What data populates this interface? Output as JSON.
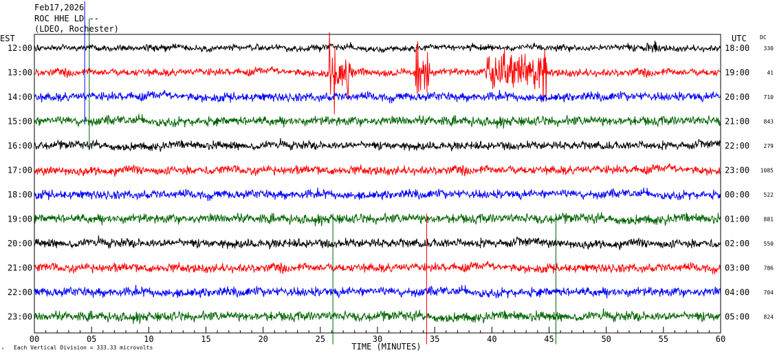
{
  "header": {
    "date": "Feb17,2026",
    "station": "ROC HHE LD --",
    "network": "(LDEO, Rochester)"
  },
  "footer": {
    "mark": "ᵃ",
    "scale_text": "Each Vertical Division =  333.33 microvolts"
  },
  "chart_data": {
    "type": "line",
    "subtype": "helicorder",
    "xlabel": "TIME (MINUTES)",
    "xlim": [
      0,
      60
    ],
    "x_ticks": [
      "00",
      "05",
      "10",
      "15",
      "20",
      "25",
      "30",
      "35",
      "40",
      "45",
      "50",
      "55",
      "60"
    ],
    "left_axis_title": "EST",
    "right_axis_title": "UTC",
    "dc_title": "DC",
    "series_colors": [
      "#000000",
      "#ff0000",
      "#0000ff",
      "#006400"
    ],
    "rows": [
      {
        "est": "12:00",
        "utc": "18:00",
        "dc": "330",
        "color": "#000000",
        "amp": 1.0
      },
      {
        "est": "13:00",
        "utc": "19:00",
        "dc": "41",
        "color": "#ff0000",
        "amp": 1.2
      },
      {
        "est": "14:00",
        "utc": "20:00",
        "dc": "710",
        "color": "#0000ff",
        "amp": 1.4
      },
      {
        "est": "15:00",
        "utc": "21:00",
        "dc": "843",
        "color": "#006400",
        "amp": 1.5
      },
      {
        "est": "16:00",
        "utc": "22:00",
        "dc": "279",
        "color": "#000000",
        "amp": 1.3
      },
      {
        "est": "17:00",
        "utc": "23:00",
        "dc": "1085",
        "color": "#ff0000",
        "amp": 1.4
      },
      {
        "est": "18:00",
        "utc": "00:00",
        "dc": "522",
        "color": "#0000ff",
        "amp": 1.4
      },
      {
        "est": "19:00",
        "utc": "01:00",
        "dc": "881",
        "color": "#006400",
        "amp": 1.5
      },
      {
        "est": "20:00",
        "utc": "02:00",
        "dc": "550",
        "color": "#000000",
        "amp": 1.4
      },
      {
        "est": "21:00",
        "utc": "03:00",
        "dc": "786",
        "color": "#ff0000",
        "amp": 1.4
      },
      {
        "est": "22:00",
        "utc": "04:00",
        "dc": "704",
        "color": "#0000ff",
        "amp": 1.5
      },
      {
        "est": "23:00",
        "utc": "05:00",
        "dc": "824",
        "color": "#006400",
        "amp": 1.5
      }
    ],
    "events": [
      {
        "row": 1,
        "start_min": 25.8,
        "end_min": 27.8,
        "color": "#ff0000"
      },
      {
        "row": 1,
        "start_min": 33.3,
        "end_min": 34.6,
        "color": "#ff0000"
      },
      {
        "row": 1,
        "start_min": 39.5,
        "end_min": 44.8,
        "color": "#ff0000"
      },
      {
        "row": 0,
        "start_min": 53.2,
        "end_min": 54.6,
        "color": "#000000"
      }
    ],
    "glitches": [
      {
        "row": 2,
        "minute": 4.4,
        "color": "#0000ff"
      },
      {
        "row": 3,
        "minute": 4.8,
        "color": "#006400"
      },
      {
        "row": 11,
        "minute": 26.1,
        "color": "#006400"
      },
      {
        "row": 11,
        "minute": 34.3,
        "color": "#ff0000"
      },
      {
        "row": 11,
        "minute": 45.6,
        "color": "#006400"
      }
    ]
  }
}
